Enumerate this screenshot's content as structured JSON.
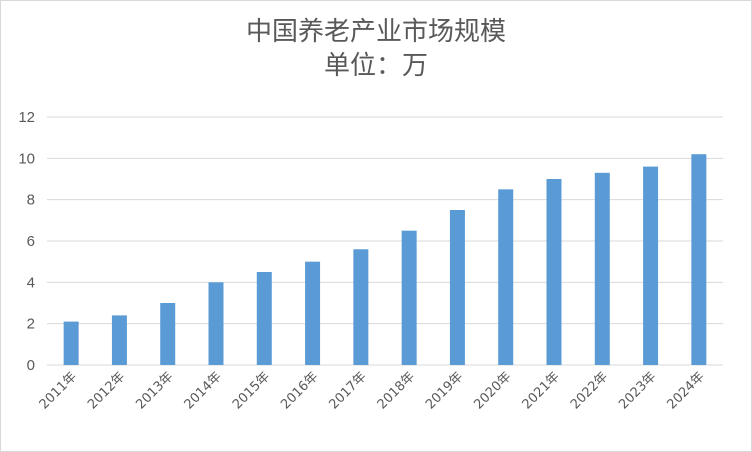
{
  "chart_data": {
    "type": "bar",
    "title": "中国养老产业市场规模",
    "subtitle": "单位：万",
    "categories": [
      "2011年",
      "2012年",
      "2013年",
      "2014年",
      "2015年",
      "2016年",
      "2017年",
      "2018年",
      "2019年",
      "2020年",
      "2021年",
      "2022年",
      "2023年",
      "2024年"
    ],
    "series": [
      {
        "values": [
          2.1,
          2.4,
          3.0,
          4.0,
          4.5,
          5.0,
          5.6,
          6.5,
          7.5,
          8.5,
          9.0,
          9.3,
          9.6,
          10.2
        ]
      }
    ],
    "ylim": [
      0,
      12
    ],
    "yticks": [
      0,
      2,
      4,
      6,
      8,
      10,
      12
    ],
    "grid": true,
    "legend": "none",
    "colors": {
      "bar": "#5b9bd5",
      "grid": "#d9d9d9",
      "text": "#595959"
    }
  }
}
